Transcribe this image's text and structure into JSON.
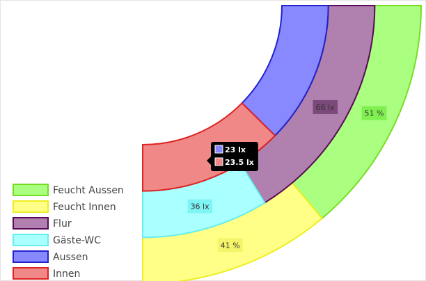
{
  "chart_data": {
    "type": "doughnut",
    "circumference": 90,
    "rings": [
      {
        "series": [
          {
            "name": "Feucht Aussen",
            "color": "#aaff80",
            "border_color": "#77dd22",
            "label_color": "#80f050",
            "values": [
              51
            ],
            "value_labels": [
              "51 %"
            ]
          },
          {
            "name": "Feucht Innen",
            "color": "#ffff88",
            "border_color": "#eeee22",
            "label_color": "#f4f46a",
            "values": [
              41
            ],
            "value_labels": [
              "41 %"
            ]
          }
        ]
      },
      {
        "series": [
          {
            "name": "Flur",
            "color": "#b080ae",
            "border_color": "#5a0a5a",
            "label_color": "#7c4a7a",
            "values": [
              66
            ],
            "value_labels": [
              "66 lx"
            ]
          },
          {
            "name": "Gäste-WC",
            "color": "#aaffff",
            "border_color": "#66eeee",
            "label_color": "#7ff4f4",
            "values": [
              36
            ],
            "value_labels": [
              "36 lx"
            ]
          }
        ]
      },
      {
        "series": [
          {
            "name": "Aussen",
            "color": "#8888ff",
            "border_color": "#2222cc",
            "values": [
              23
            ],
            "value_labels": [
              "23 lx"
            ]
          },
          {
            "name": "Innen",
            "color": "#f08888",
            "border_color": "#dd2222",
            "values": [
              23.5
            ],
            "value_labels": [
              "23.5 lx"
            ]
          }
        ]
      }
    ],
    "tooltip_ring": 2
  }
}
